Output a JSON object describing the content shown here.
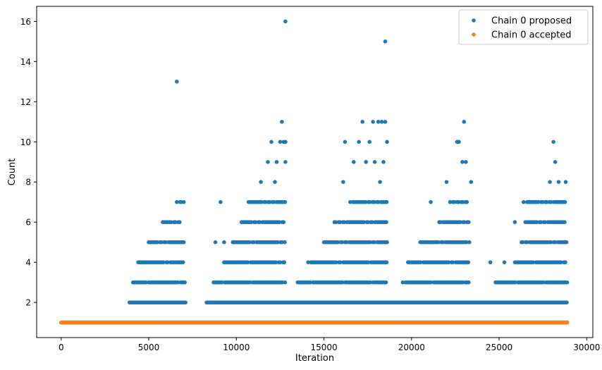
{
  "chart_data": {
    "type": "scatter",
    "title": "",
    "xlabel": "Iteration",
    "ylabel": "Count",
    "xlim": [
      -1400,
      30350
    ],
    "ylim": [
      0.25,
      16.75
    ],
    "xticks": [
      0,
      5000,
      10000,
      15000,
      20000,
      25000,
      30000
    ],
    "yticks": [
      2,
      4,
      6,
      8,
      10,
      12,
      14,
      16
    ],
    "grid": false,
    "legend_position": "top-right",
    "series": [
      {
        "name": "Chain 0 proposed",
        "color": "#1f77b4",
        "x_max": 28900,
        "bands": [
          {
            "y": 1,
            "ranges": [
              [
                0,
                28900
              ]
            ]
          },
          {
            "y": 2,
            "ranges": [
              [
                3900,
                7100
              ],
              [
                8300,
                28900
              ]
            ]
          },
          {
            "y": 3,
            "ranges": [
              [
                4100,
                7100
              ],
              [
                8700,
                12800
              ],
              [
                13500,
                18600
              ],
              [
                19500,
                23300
              ],
              [
                24800,
                28900
              ]
            ]
          },
          {
            "y": 4,
            "ranges": [
              [
                4400,
                7000
              ],
              [
                9300,
                12800
              ],
              [
                14100,
                18600
              ],
              [
                19800,
                23300
              ],
              [
                25900,
                28900
              ]
            ]
          },
          {
            "y": 5,
            "ranges": [
              [
                5000,
                7000
              ],
              [
                9800,
                12800
              ],
              [
                15000,
                18600
              ],
              [
                20500,
                23300
              ],
              [
                26200,
                28900
              ]
            ]
          },
          {
            "y": 6,
            "ranges": [
              [
                5800,
                6800
              ],
              [
                10300,
                12800
              ],
              [
                15600,
                18600
              ],
              [
                21500,
                23300
              ],
              [
                26500,
                28800
              ]
            ]
          },
          {
            "y": 7,
            "ranges": [
              [
                6700,
                7000
              ],
              [
                10700,
                12800
              ],
              [
                16500,
                18600
              ],
              [
                22200,
                23200
              ],
              [
                26600,
                28800
              ]
            ]
          }
        ],
        "sparse_points": [
          [
            4500,
            4
          ],
          [
            6100,
            6
          ],
          [
            6500,
            6
          ],
          [
            6600,
            7
          ],
          [
            7000,
            7
          ],
          [
            8800,
            5
          ],
          [
            9100,
            7
          ],
          [
            9300,
            5
          ],
          [
            10600,
            6
          ],
          [
            11400,
            8
          ],
          [
            12200,
            8
          ],
          [
            11800,
            9
          ],
          [
            12000,
            10
          ],
          [
            12300,
            9
          ],
          [
            12500,
            10
          ],
          [
            12600,
            11
          ],
          [
            12700,
            10
          ],
          [
            12800,
            9
          ],
          [
            12800,
            10
          ],
          [
            14600,
            4
          ],
          [
            15300,
            5
          ],
          [
            16100,
            8
          ],
          [
            16200,
            10
          ],
          [
            16700,
            9
          ],
          [
            17000,
            10
          ],
          [
            17200,
            11
          ],
          [
            17400,
            9
          ],
          [
            17600,
            10
          ],
          [
            17800,
            11
          ],
          [
            17900,
            9
          ],
          [
            18100,
            11
          ],
          [
            18200,
            8
          ],
          [
            18300,
            11
          ],
          [
            18400,
            9
          ],
          [
            18500,
            11
          ],
          [
            18600,
            10
          ],
          [
            20900,
            5
          ],
          [
            21100,
            7
          ],
          [
            21800,
            6
          ],
          [
            22000,
            8
          ],
          [
            22400,
            7
          ],
          [
            22600,
            10
          ],
          [
            22700,
            10
          ],
          [
            22900,
            9
          ],
          [
            23000,
            11
          ],
          [
            23100,
            9
          ],
          [
            23400,
            8
          ],
          [
            24500,
            4
          ],
          [
            25300,
            4
          ],
          [
            25900,
            6
          ],
          [
            26400,
            7
          ],
          [
            26900,
            7
          ],
          [
            27700,
            7
          ],
          [
            27900,
            8
          ],
          [
            28100,
            10
          ],
          [
            28200,
            9
          ],
          [
            28400,
            8
          ],
          [
            28600,
            7
          ],
          [
            28800,
            8
          ],
          [
            6600,
            13
          ],
          [
            12800,
            16
          ],
          [
            18500,
            15
          ]
        ]
      },
      {
        "name": "Chain 0 accepted",
        "color": "#ff7f0e",
        "bands": [
          {
            "y": 1,
            "ranges": [
              [
                0,
                28900
              ]
            ]
          }
        ]
      }
    ]
  }
}
